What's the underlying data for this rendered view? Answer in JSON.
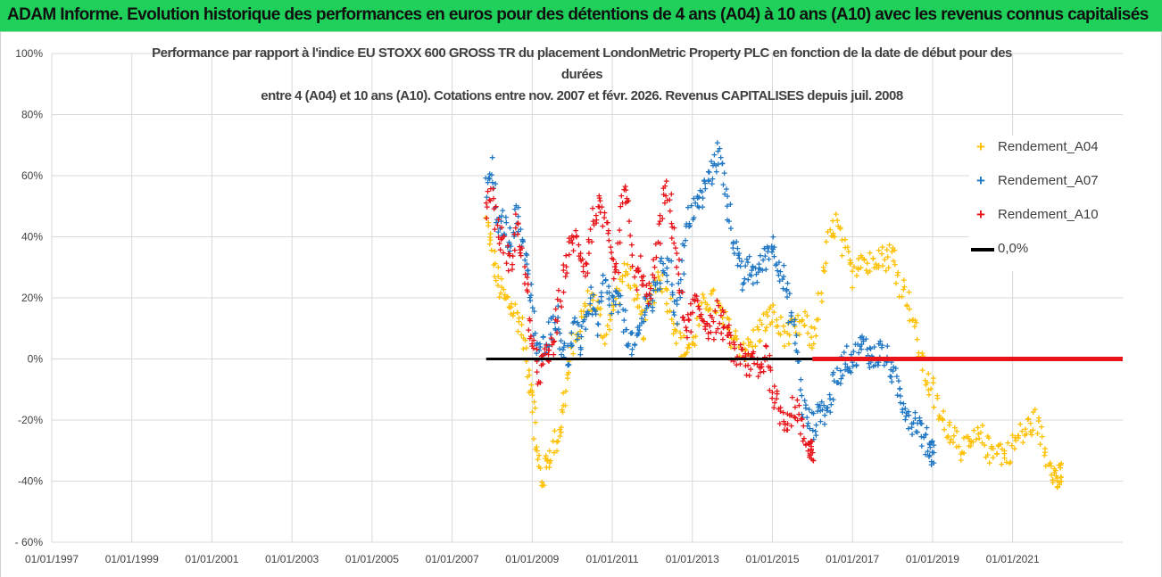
{
  "banner": {
    "text": "ADAM Informe. Evolution historique des performances en euros pour des détentions de 4 ans (A04) à 10 ans (A10) avec les revenus connus capitalisés"
  },
  "chart_data": {
    "type": "scatter",
    "title_lines": [
      "Performance par rapport à l'indice EU STOXX 600 GROSS TR  du placement LondonMetric Property PLC en fonction de la date de début pour des",
      "durées",
      "entre 4 (A04) et 10 ans (A10). Cotations entre nov. 2007 et févr. 2026. Revenus CAPITALISES depuis juil. 2008"
    ],
    "xlim": [
      1997.0,
      2023.75
    ],
    "ylim": [
      -60,
      100
    ],
    "x_ticks": [
      {
        "value": 1997,
        "label": "01/01/1997"
      },
      {
        "value": 1999,
        "label": "01/01/1999"
      },
      {
        "value": 2001,
        "label": "01/01/2001"
      },
      {
        "value": 2003,
        "label": "01/01/2003"
      },
      {
        "value": 2005,
        "label": "01/01/2005"
      },
      {
        "value": 2007,
        "label": "01/01/2007"
      },
      {
        "value": 2009,
        "label": "01/01/2009"
      },
      {
        "value": 2011,
        "label": "01/01/2011"
      },
      {
        "value": 2013,
        "label": "01/01/2013"
      },
      {
        "value": 2015,
        "label": "01/01/2015"
      },
      {
        "value": 2017,
        "label": "01/01/2017"
      },
      {
        "value": 2019,
        "label": "01/01/2019"
      },
      {
        "value": 2021,
        "label": "01/01/2021"
      }
    ],
    "y_ticks": [
      {
        "value": 100,
        "label": "100%"
      },
      {
        "value": 80,
        "label": "80%"
      },
      {
        "value": 60,
        "label": "60%"
      },
      {
        "value": 40,
        "label": "40%"
      },
      {
        "value": 20,
        "label": "20%"
      },
      {
        "value": 0,
        "label": "0%"
      },
      {
        "value": -20,
        "label": "-20%"
      },
      {
        "value": -40,
        "label": "-40%"
      },
      {
        "value": -60,
        "label": "- 60%"
      }
    ],
    "grid": true,
    "legend_position": "right",
    "series": [
      {
        "name": "Rendement_A04",
        "color": "#ffc000",
        "marker": "plus",
        "x": [
          2007.85,
          2008.0,
          2008.15,
          2008.3,
          2008.45,
          2008.6,
          2008.75,
          2008.9,
          2009.0,
          2009.1,
          2009.25,
          2009.4,
          2009.55,
          2009.7,
          2009.85,
          2010.0,
          2010.2,
          2010.4,
          2010.6,
          2010.8,
          2011.0,
          2011.2,
          2011.4,
          2011.6,
          2011.8,
          2012.0,
          2012.2,
          2012.4,
          2012.6,
          2012.8,
          2013.0,
          2013.2,
          2013.4,
          2013.6,
          2013.8,
          2014.0,
          2014.2,
          2014.4,
          2014.6,
          2014.8,
          2015.0,
          2015.2,
          2015.4,
          2015.6,
          2015.8,
          2016.0,
          2016.2,
          2016.4,
          2016.6,
          2016.8,
          2017.0,
          2017.2,
          2017.4,
          2017.6,
          2017.8,
          2018.0,
          2018.2,
          2018.4,
          2018.6,
          2018.8,
          2019.0,
          2019.2,
          2019.4,
          2019.6,
          2019.8,
          2020.0,
          2020.2,
          2020.4,
          2020.6,
          2020.8,
          2021.0,
          2021.2,
          2021.4,
          2021.6,
          2021.8,
          2022.0,
          2022.1,
          2022.2
        ],
        "y": [
          45,
          35,
          25,
          20,
          18,
          15,
          10,
          -5,
          -10,
          -30,
          -40,
          -32,
          -28,
          -22,
          -10,
          5,
          12,
          20,
          18,
          8,
          15,
          25,
          30,
          18,
          10,
          22,
          28,
          20,
          10,
          3,
          5,
          15,
          20,
          18,
          12,
          8,
          5,
          3,
          8,
          12,
          15,
          10,
          8,
          10,
          12,
          5,
          20,
          38,
          45,
          35,
          28,
          35,
          30,
          35,
          33,
          35,
          25,
          20,
          8,
          -5,
          -10,
          -20,
          -22,
          -25,
          -30,
          -28,
          -25,
          -30,
          -28,
          -32,
          -28,
          -25,
          -22,
          -20,
          -30,
          -35,
          -40,
          -38
        ]
      },
      {
        "name": "Rendement_A07",
        "color": "#1f77c4",
        "marker": "plus",
        "x": [
          2007.85,
          2008.0,
          2008.15,
          2008.3,
          2008.45,
          2008.6,
          2008.75,
          2008.9,
          2009.0,
          2009.15,
          2009.3,
          2009.45,
          2009.6,
          2009.75,
          2009.9,
          2010.05,
          2010.2,
          2010.35,
          2010.5,
          2010.65,
          2010.8,
          2010.95,
          2011.1,
          2011.25,
          2011.4,
          2011.55,
          2011.7,
          2011.85,
          2012.0,
          2012.15,
          2012.3,
          2012.45,
          2012.6,
          2012.75,
          2012.9,
          2013.05,
          2013.2,
          2013.35,
          2013.5,
          2013.65,
          2013.8,
          2013.95,
          2014.1,
          2014.25,
          2014.4,
          2014.55,
          2014.7,
          2014.85,
          2015.0,
          2015.15,
          2015.3,
          2015.45,
          2015.6,
          2015.75,
          2015.9,
          2016.05,
          2016.2,
          2016.35,
          2016.5,
          2016.65,
          2016.8,
          2016.95,
          2017.1,
          2017.25,
          2017.4,
          2017.55,
          2017.7,
          2017.85,
          2018.0,
          2018.15,
          2018.3,
          2018.45,
          2018.6,
          2018.75,
          2018.9,
          2019.0
        ],
        "y": [
          55,
          62,
          42,
          45,
          38,
          48,
          40,
          30,
          15,
          0,
          5,
          10,
          15,
          5,
          0,
          10,
          5,
          15,
          20,
          10,
          25,
          18,
          20,
          15,
          8,
          3,
          10,
          20,
          18,
          25,
          32,
          28,
          15,
          30,
          45,
          50,
          52,
          58,
          62,
          68,
          60,
          45,
          35,
          25,
          30,
          28,
          30,
          35,
          38,
          32,
          25,
          15,
          5,
          -15,
          -20,
          -22,
          -15,
          -18,
          -10,
          -5,
          0,
          0,
          2,
          5,
          2,
          0,
          3,
          0,
          -5,
          -10,
          -15,
          -20,
          -20,
          -25,
          -28,
          -30
        ]
      },
      {
        "name": "Rendement_A10",
        "color": "#e8141a",
        "marker": "plus",
        "x": [
          2007.85,
          2008.0,
          2008.15,
          2008.3,
          2008.45,
          2008.6,
          2008.75,
          2008.9,
          2009.0,
          2009.15,
          2009.3,
          2009.45,
          2009.6,
          2009.75,
          2009.9,
          2010.05,
          2010.2,
          2010.35,
          2010.5,
          2010.65,
          2010.8,
          2010.95,
          2011.1,
          2011.25,
          2011.4,
          2011.55,
          2011.7,
          2011.85,
          2012.0,
          2012.15,
          2012.3,
          2012.45,
          2012.6,
          2012.75,
          2012.9,
          2013.05,
          2013.2,
          2013.35,
          2013.5,
          2013.65,
          2013.8,
          2013.95,
          2014.1,
          2014.25,
          2014.4,
          2014.55,
          2014.7,
          2014.85,
          2015.0,
          2015.15,
          2015.3,
          2015.45,
          2015.6,
          2015.75,
          2015.9,
          2016.0
        ],
        "y": [
          50,
          55,
          40,
          38,
          30,
          45,
          35,
          20,
          5,
          -5,
          0,
          2,
          10,
          25,
          35,
          40,
          35,
          30,
          45,
          50,
          45,
          35,
          25,
          50,
          55,
          25,
          30,
          20,
          25,
          40,
          55,
          50,
          35,
          15,
          10,
          18,
          15,
          12,
          10,
          15,
          10,
          5,
          0,
          3,
          -3,
          0,
          -5,
          5,
          -10,
          -15,
          -20,
          -18,
          -15,
          -25,
          -28,
          -30
        ]
      },
      {
        "name": "0,0%",
        "color": "#000000",
        "marker": "line",
        "x": [
          2007.85,
          2016.0
        ],
        "y": [
          0,
          0
        ]
      }
    ],
    "zero_overlay": {
      "color": "#e8141a",
      "x": [
        2016.0,
        2023.75
      ],
      "y": [
        0,
        0
      ]
    }
  }
}
